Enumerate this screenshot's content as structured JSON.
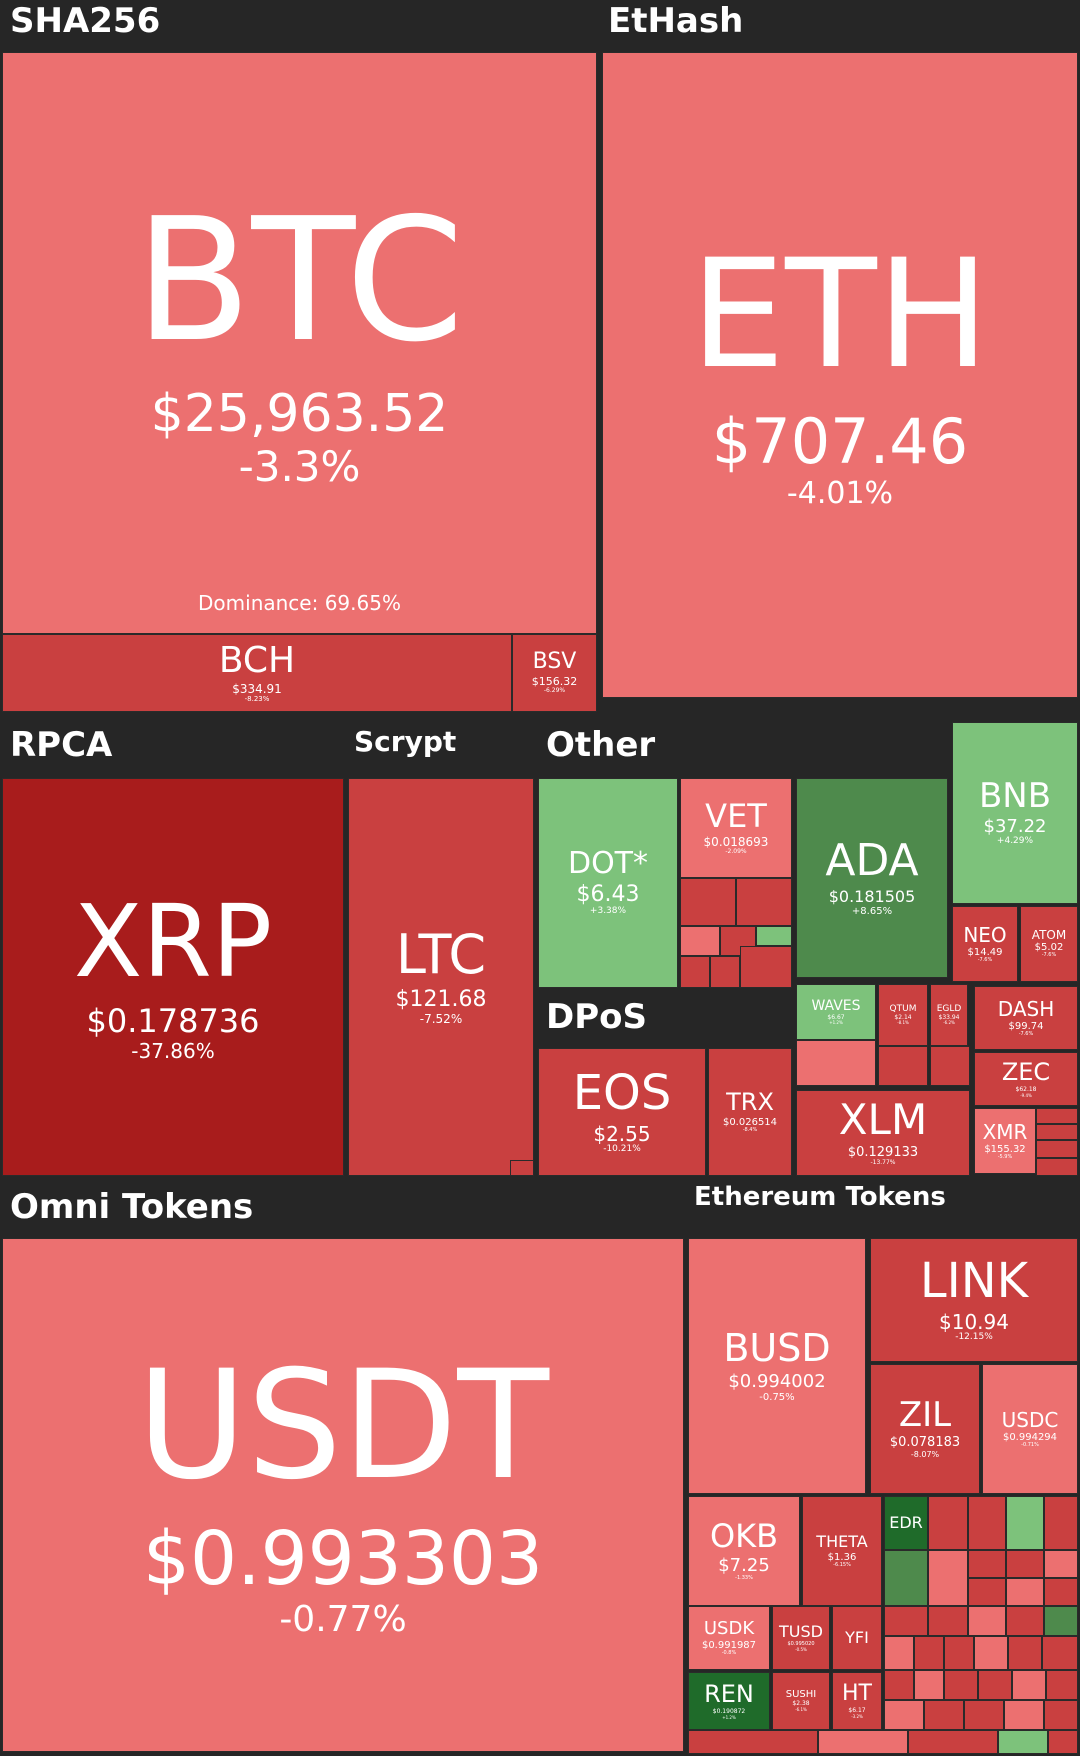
{
  "colors": {
    "background": "#262626",
    "light_red": "#ec7070",
    "mid_red": "#c94040",
    "dark_red": "#a81c1c",
    "light_green": "#7dc27b",
    "dark_green": "#4e8a4c",
    "deep_green": "#1f6b2a"
  },
  "chart_data": {
    "type": "treemap",
    "groups": [
      {
        "name": "SHA256",
        "tiles": [
          {
            "symbol": "BTC",
            "price": "$25,963.52",
            "change": "-3.3%",
            "extra": "Dominance: 69.65%"
          },
          {
            "symbol": "BCH",
            "price": "$334.91",
            "change": "-8.23%"
          },
          {
            "symbol": "BSV",
            "price": "$156.32",
            "change": "-6.29%"
          }
        ]
      },
      {
        "name": "EtHash",
        "tiles": [
          {
            "symbol": "ETH",
            "price": "$707.46",
            "change": "-4.01%"
          }
        ]
      },
      {
        "name": "RPCA",
        "tiles": [
          {
            "symbol": "XRP",
            "price": "$0.178736",
            "change": "-37.86%"
          }
        ]
      },
      {
        "name": "Scrypt",
        "tiles": [
          {
            "symbol": "LTC",
            "price": "$121.68",
            "change": "-7.52%"
          }
        ]
      },
      {
        "name": "Other",
        "tiles": [
          {
            "symbol": "DOT*",
            "price": "$6.43",
            "change": "+3.38%"
          },
          {
            "symbol": "VET",
            "price": "$0.018693",
            "change": "-2.09%"
          },
          {
            "symbol": "ADA",
            "price": "$0.181505",
            "change": "+8.65%"
          },
          {
            "symbol": "BNB",
            "price": "$37.22",
            "change": "+4.29%"
          },
          {
            "symbol": "NEO",
            "price": "$14.49",
            "change": "-7.6%"
          },
          {
            "symbol": "ATOM",
            "price": "$5.02",
            "change": "-7.6%"
          },
          {
            "symbol": "WAVES",
            "price": "$6.67",
            "change": "+1.2%"
          },
          {
            "symbol": "QTUM",
            "price": "$2.14",
            "change": "-8.1%"
          },
          {
            "symbol": "EGLD",
            "price": "$33.94",
            "change": "-6.2%"
          },
          {
            "symbol": "DASH",
            "price": "$99.74",
            "change": "-7.6%"
          },
          {
            "symbol": "ZEC",
            "price": "$62.18",
            "change": "-9.4%"
          },
          {
            "symbol": "XLM",
            "price": "$0.129133",
            "change": "-13.77%"
          },
          {
            "symbol": "XMR",
            "price": "$155.32",
            "change": "-5.9%"
          }
        ]
      },
      {
        "name": "DPoS",
        "tiles": [
          {
            "symbol": "EOS",
            "price": "$2.55",
            "change": "-10.21%"
          },
          {
            "symbol": "TRX",
            "price": "$0.026514",
            "change": "-8.4%"
          }
        ]
      },
      {
        "name": "Omni Tokens",
        "tiles": [
          {
            "symbol": "USDT",
            "price": "$0.993303",
            "change": "-0.77%"
          }
        ]
      },
      {
        "name": "Ethereum Tokens",
        "tiles": [
          {
            "symbol": "BUSD",
            "price": "$0.994002",
            "change": "-0.75%"
          },
          {
            "symbol": "LINK",
            "price": "$10.94",
            "change": "-12.15%"
          },
          {
            "symbol": "ZIL",
            "price": "$0.078183",
            "change": "-8.07%"
          },
          {
            "symbol": "USDC",
            "price": "$0.994294",
            "change": "-0.71%"
          },
          {
            "symbol": "OKB",
            "price": "$7.25",
            "change": "-1.33%"
          },
          {
            "symbol": "THETA",
            "price": "$1.36",
            "change": "-6.15%"
          },
          {
            "symbol": "EDR",
            "price": "",
            "change": ""
          },
          {
            "symbol": "USDK",
            "price": "$0.991987",
            "change": "-0.8%"
          },
          {
            "symbol": "TUSD",
            "price": "$0.995020",
            "change": "-0.5%"
          },
          {
            "symbol": "YFI",
            "price": "",
            "change": ""
          },
          {
            "symbol": "REN",
            "price": "$0.190872",
            "change": "+1.2%"
          },
          {
            "symbol": "SUSHI",
            "price": "$2.38",
            "change": "-6.1%"
          },
          {
            "symbol": "HT",
            "price": "$6.17",
            "change": "-3.2%"
          }
        ]
      }
    ]
  }
}
